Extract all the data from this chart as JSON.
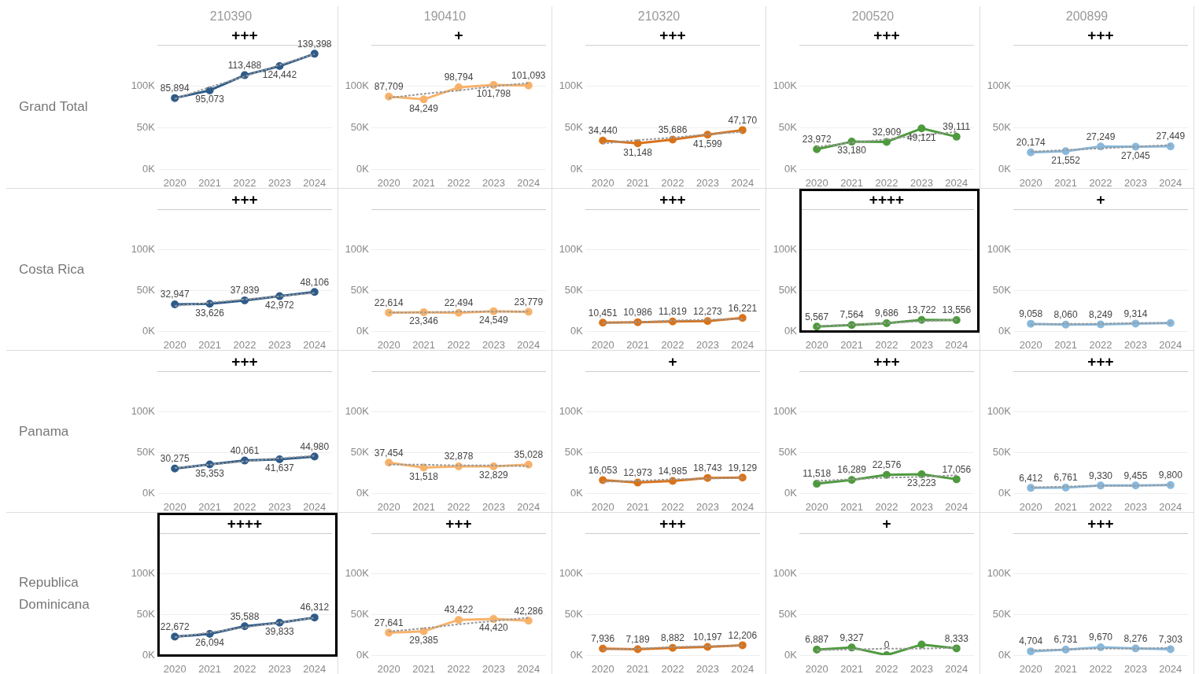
{
  "chart_data": [
    {
      "type": "line",
      "title": "210390",
      "ylabel": "Grand Total",
      "categories": [
        "2020",
        "2021",
        "2022",
        "2023",
        "2024"
      ],
      "series": [
        {
          "color": "#2e5b8a",
          "marker": "circle",
          "values": [
            85894,
            95073,
            113488,
            124442,
            139398
          ],
          "value_labels": [
            "85,894",
            "95,073",
            "113,488",
            "124,442",
            "139,398"
          ]
        },
        {
          "type": "line",
          "color": "#999999",
          "line_style": "dashed",
          "marker": "none",
          "values": [
            85000,
            99000,
            112000,
            126000,
            139000
          ]
        }
      ],
      "ylim": [
        0,
        150000
      ],
      "yticks": [
        {
          "value": 0,
          "label": "0K"
        },
        {
          "value": 50000,
          "label": "50K"
        },
        {
          "value": 100000,
          "label": "100K"
        }
      ],
      "grid": "y",
      "annotations": [
        "+++"
      ]
    },
    {
      "type": "line",
      "title": "190410",
      "categories": [
        "2020",
        "2021",
        "2022",
        "2023",
        "2024"
      ],
      "series": [
        {
          "color": "#f7b26a",
          "marker": "circle",
          "values": [
            87709,
            84249,
            98794,
            101798,
            101093
          ],
          "value_labels": [
            "87,709",
            "84,249",
            "98,794",
            "101,798",
            "101,093"
          ]
        },
        {
          "type": "line",
          "color": "#999999",
          "line_style": "dashed",
          "marker": "none",
          "values": [
            86000,
            91000,
            95000,
            100000,
            104000
          ]
        }
      ],
      "ylim": [
        0,
        150000
      ],
      "yticks": [
        {
          "value": 0,
          "label": "0K"
        },
        {
          "value": 50000,
          "label": "50K"
        },
        {
          "value": 100000,
          "label": "100K"
        }
      ],
      "grid": "y",
      "annotations": [
        "+"
      ]
    },
    {
      "type": "line",
      "title": "210320",
      "categories": [
        "2020",
        "2021",
        "2022",
        "2023",
        "2024"
      ],
      "series": [
        {
          "color": "#d9731a",
          "marker": "circle",
          "values": [
            34440,
            31148,
            35686,
            41599,
            47170
          ],
          "value_labels": [
            "34,440",
            "31,148",
            "35,686",
            "41,599",
            "47,170"
          ]
        },
        {
          "type": "line",
          "color": "#999999",
          "line_style": "dashed",
          "marker": "none",
          "values": [
            31000,
            35000,
            38000,
            42000,
            45000
          ]
        }
      ],
      "ylim": [
        0,
        150000
      ],
      "yticks": [
        {
          "value": 0,
          "label": "0K"
        },
        {
          "value": 50000,
          "label": "50K"
        },
        {
          "value": 100000,
          "label": "100K"
        }
      ],
      "grid": "y",
      "annotations": [
        "+++"
      ]
    },
    {
      "type": "line",
      "title": "200520",
      "categories": [
        "2020",
        "2021",
        "2022",
        "2023",
        "2024"
      ],
      "series": [
        {
          "color": "#4e9a3e",
          "marker": "circle",
          "values": [
            23972,
            33180,
            32909,
            49121,
            39111
          ],
          "value_labels": [
            "23,972",
            "33,180",
            "32,909",
            "49,121",
            "39,111"
          ]
        },
        {
          "type": "line",
          "color": "#999999",
          "line_style": "dashed",
          "marker": "none",
          "values": [
            27000,
            32000,
            36000,
            41000,
            45000
          ]
        }
      ],
      "ylim": [
        0,
        150000
      ],
      "yticks": [
        {
          "value": 0,
          "label": "0K"
        },
        {
          "value": 50000,
          "label": "50K"
        },
        {
          "value": 100000,
          "label": "100K"
        }
      ],
      "grid": "y",
      "annotations": [
        "+++"
      ]
    },
    {
      "type": "line",
      "title": "200899",
      "categories": [
        "2020",
        "2021",
        "2022",
        "2023",
        "2024"
      ],
      "series": [
        {
          "color": "#88b8dc",
          "marker": "circle",
          "values": [
            20174,
            21552,
            27249,
            27045,
            27449
          ],
          "value_labels": [
            "20,174",
            "21,552",
            "27,249",
            "27,045",
            "27,449"
          ]
        },
        {
          "type": "line",
          "color": "#999999",
          "line_style": "dashed",
          "marker": "none",
          "values": [
            21000,
            23000,
            25000,
            27000,
            29000
          ]
        }
      ],
      "ylim": [
        0,
        150000
      ],
      "yticks": [
        {
          "value": 0,
          "label": "0K"
        },
        {
          "value": 50000,
          "label": "50K"
        },
        {
          "value": 100000,
          "label": "100K"
        }
      ],
      "grid": "y",
      "annotations": [
        "+++"
      ]
    },
    {
      "type": "line",
      "ylabel": "Costa Rica",
      "categories": [
        "2020",
        "2021",
        "2022",
        "2023",
        "2024"
      ],
      "series": [
        {
          "color": "#2e5b8a",
          "marker": "circle",
          "values": [
            32947,
            33626,
            37839,
            42972,
            48106
          ],
          "value_labels": [
            "32,947",
            "33,626",
            "37,839",
            "42,972",
            "48,106"
          ]
        },
        {
          "type": "line",
          "color": "#999999",
          "line_style": "dashed",
          "marker": "none",
          "values": [
            31000,
            35000,
            39000,
            43000,
            47000
          ]
        }
      ],
      "ylim": [
        0,
        150000
      ],
      "yticks": [
        {
          "value": 0,
          "label": "0K"
        },
        {
          "value": 50000,
          "label": "50K"
        },
        {
          "value": 100000,
          "label": "100K"
        }
      ],
      "grid": "y",
      "annotations": [
        "+++"
      ]
    },
    {
      "type": "line",
      "categories": [
        "2020",
        "2021",
        "2022",
        "2023",
        "2024"
      ],
      "series": [
        {
          "color": "#f7b26a",
          "marker": "circle",
          "values": [
            22614,
            23346,
            22494,
            24549,
            23779
          ],
          "value_labels": [
            "22,614",
            "23,346",
            "22,494",
            "24,549",
            "23,779"
          ]
        },
        {
          "type": "line",
          "color": "#999999",
          "line_style": "dashed",
          "marker": "none",
          "values": [
            23000,
            23000,
            24000,
            24000,
            24000
          ]
        }
      ],
      "ylim": [
        0,
        150000
      ],
      "yticks": [
        {
          "value": 0,
          "label": "0K"
        },
        {
          "value": 50000,
          "label": "50K"
        },
        {
          "value": 100000,
          "label": "100K"
        }
      ],
      "grid": "y"
    },
    {
      "type": "line",
      "categories": [
        "2020",
        "2021",
        "2022",
        "2023",
        "2024"
      ],
      "series": [
        {
          "color": "#d9731a",
          "marker": "circle",
          "values": [
            10451,
            10986,
            11819,
            12273,
            16221
          ],
          "value_labels": [
            "10,451",
            "10,986",
            "11,819",
            "12,273",
            "16,221"
          ]
        },
        {
          "type": "line",
          "color": "#999999",
          "line_style": "dashed",
          "marker": "none",
          "values": [
            10000,
            11000,
            13000,
            14000,
            15000
          ]
        }
      ],
      "ylim": [
        0,
        150000
      ],
      "yticks": [
        {
          "value": 0,
          "label": "0K"
        },
        {
          "value": 50000,
          "label": "50K"
        },
        {
          "value": 100000,
          "label": "100K"
        }
      ],
      "grid": "y",
      "annotations": [
        "+++"
      ]
    },
    {
      "type": "line",
      "categories": [
        "2020",
        "2021",
        "2022",
        "2023",
        "2024"
      ],
      "series": [
        {
          "color": "#4e9a3e",
          "marker": "circle",
          "values": [
            5567,
            7564,
            9686,
            13722,
            13556
          ],
          "value_labels": [
            "5,567",
            "7,564",
            "9,686",
            "13,722",
            "13,556"
          ]
        },
        {
          "type": "line",
          "color": "#999999",
          "line_style": "dashed",
          "marker": "none",
          "values": [
            6000,
            8000,
            10000,
            12000,
            14000
          ]
        }
      ],
      "ylim": [
        0,
        150000
      ],
      "yticks": [
        {
          "value": 0,
          "label": "0K"
        },
        {
          "value": 50000,
          "label": "50K"
        },
        {
          "value": 100000,
          "label": "100K"
        }
      ],
      "grid": "y",
      "annotations": [
        "++++"
      ]
    },
    {
      "type": "line",
      "categories": [
        "2020",
        "2021",
        "2022",
        "2023",
        "2024"
      ],
      "series": [
        {
          "color": "#88b8dc",
          "marker": "circle",
          "values": [
            9058,
            8060,
            8249,
            9314,
            10000
          ],
          "value_labels": [
            "9,058",
            "8,060",
            "8,249",
            "9,314",
            null
          ]
        },
        {
          "type": "line",
          "color": "#999999",
          "line_style": "dashed",
          "marker": "none",
          "values": [
            8000,
            9000,
            9000,
            10000,
            10000
          ]
        }
      ],
      "ylim": [
        0,
        150000
      ],
      "yticks": [
        {
          "value": 0,
          "label": "0K"
        },
        {
          "value": 50000,
          "label": "50K"
        },
        {
          "value": 100000,
          "label": "100K"
        }
      ],
      "grid": "y",
      "annotations": [
        "+"
      ]
    },
    {
      "type": "line",
      "ylabel": "Panama",
      "categories": [
        "2020",
        "2021",
        "2022",
        "2023",
        "2024"
      ],
      "series": [
        {
          "color": "#2e5b8a",
          "marker": "circle",
          "values": [
            30275,
            35353,
            40061,
            41637,
            44980
          ],
          "value_labels": [
            "30,275",
            "35,353",
            "40,061",
            "41,637",
            "44,980"
          ]
        },
        {
          "type": "line",
          "color": "#999999",
          "line_style": "dashed",
          "marker": "none",
          "values": [
            31000,
            35000,
            39000,
            43000,
            46000
          ]
        }
      ],
      "ylim": [
        0,
        150000
      ],
      "yticks": [
        {
          "value": 0,
          "label": "0K"
        },
        {
          "value": 50000,
          "label": "50K"
        },
        {
          "value": 100000,
          "label": "100K"
        }
      ],
      "grid": "y",
      "annotations": [
        "+++"
      ]
    },
    {
      "type": "line",
      "categories": [
        "2020",
        "2021",
        "2022",
        "2023",
        "2024"
      ],
      "series": [
        {
          "color": "#f7b26a",
          "marker": "circle",
          "values": [
            37454,
            31518,
            32878,
            32829,
            35028
          ],
          "value_labels": [
            "37,454",
            "31,518",
            "32,878",
            "32,829",
            "35,028"
          ]
        },
        {
          "type": "line",
          "color": "#999999",
          "line_style": "dashed",
          "marker": "none",
          "values": [
            35000,
            35000,
            34000,
            34000,
            33000
          ]
        }
      ],
      "ylim": [
        0,
        150000
      ],
      "yticks": [
        {
          "value": 0,
          "label": "0K"
        },
        {
          "value": 50000,
          "label": "50K"
        },
        {
          "value": 100000,
          "label": "100K"
        }
      ],
      "grid": "y"
    },
    {
      "type": "line",
      "categories": [
        "2020",
        "2021",
        "2022",
        "2023",
        "2024"
      ],
      "series": [
        {
          "color": "#d9731a",
          "marker": "circle",
          "values": [
            16053,
            12973,
            14985,
            18743,
            19129
          ],
          "value_labels": [
            "16,053",
            "12,973",
            "14,985",
            "18,743",
            "19,129"
          ]
        },
        {
          "type": "line",
          "color": "#999999",
          "line_style": "dashed",
          "marker": "none",
          "values": [
            14000,
            15000,
            17000,
            18000,
            19000
          ]
        }
      ],
      "ylim": [
        0,
        150000
      ],
      "yticks": [
        {
          "value": 0,
          "label": "0K"
        },
        {
          "value": 50000,
          "label": "50K"
        },
        {
          "value": 100000,
          "label": "100K"
        }
      ],
      "grid": "y",
      "annotations": [
        "+"
      ]
    },
    {
      "type": "line",
      "categories": [
        "2020",
        "2021",
        "2022",
        "2023",
        "2024"
      ],
      "series": [
        {
          "color": "#4e9a3e",
          "marker": "circle",
          "values": [
            11518,
            16289,
            22576,
            23223,
            17056
          ],
          "value_labels": [
            "11,518",
            "16,289",
            "22,576",
            "23,223",
            "17,056"
          ]
        },
        {
          "type": "line",
          "color": "#999999",
          "line_style": "dashed",
          "marker": "none",
          "values": [
            15000,
            17000,
            19000,
            20000,
            22000
          ]
        }
      ],
      "ylim": [
        0,
        150000
      ],
      "yticks": [
        {
          "value": 0,
          "label": "0K"
        },
        {
          "value": 50000,
          "label": "50K"
        },
        {
          "value": 100000,
          "label": "100K"
        }
      ],
      "grid": "y",
      "annotations": [
        "+++"
      ]
    },
    {
      "type": "line",
      "categories": [
        "2020",
        "2021",
        "2022",
        "2023",
        "2024"
      ],
      "series": [
        {
          "color": "#88b8dc",
          "marker": "circle",
          "values": [
            6412,
            6761,
            9330,
            9455,
            9800
          ],
          "value_labels": [
            "6,412",
            "6,761",
            "9,330",
            "9,455",
            "9,800"
          ]
        },
        {
          "type": "line",
          "color": "#999999",
          "line_style": "dashed",
          "marker": "none",
          "values": [
            7000,
            8000,
            9000,
            9000,
            10000
          ]
        }
      ],
      "ylim": [
        0,
        150000
      ],
      "yticks": [
        {
          "value": 0,
          "label": "0K"
        },
        {
          "value": 50000,
          "label": "50K"
        },
        {
          "value": 100000,
          "label": "100K"
        }
      ],
      "grid": "y",
      "annotations": [
        "+++"
      ]
    },
    {
      "type": "line",
      "ylabel": "Republica Dominicana",
      "categories": [
        "2020",
        "2021",
        "2022",
        "2023",
        "2024"
      ],
      "series": [
        {
          "color": "#2e5b8a",
          "marker": "circle",
          "values": [
            22672,
            26094,
            35588,
            39833,
            46312
          ],
          "value_labels": [
            "22,672",
            "26,094",
            "35,588",
            "39,833",
            "46,312"
          ]
        },
        {
          "type": "line",
          "color": "#999999",
          "line_style": "dashed",
          "marker": "none",
          "values": [
            22000,
            28000,
            34000,
            40000,
            46000
          ]
        }
      ],
      "ylim": [
        0,
        150000
      ],
      "yticks": [
        {
          "value": 0,
          "label": "0K"
        },
        {
          "value": 50000,
          "label": "50K"
        },
        {
          "value": 100000,
          "label": "100K"
        }
      ],
      "grid": "y",
      "annotations": [
        "++++"
      ]
    },
    {
      "type": "line",
      "categories": [
        "2020",
        "2021",
        "2022",
        "2023",
        "2024"
      ],
      "series": [
        {
          "color": "#f7b26a",
          "marker": "circle",
          "values": [
            27641,
            29385,
            43422,
            44420,
            42286
          ],
          "value_labels": [
            "27,641",
            "29,385",
            "43,422",
            "44,420",
            "42,286"
          ]
        },
        {
          "type": "line",
          "color": "#999999",
          "line_style": "dashed",
          "marker": "none",
          "values": [
            29000,
            33000,
            38000,
            42000,
            46000
          ]
        }
      ],
      "ylim": [
        0,
        150000
      ],
      "yticks": [
        {
          "value": 0,
          "label": "0K"
        },
        {
          "value": 50000,
          "label": "50K"
        },
        {
          "value": 100000,
          "label": "100K"
        }
      ],
      "grid": "y",
      "annotations": [
        "+++"
      ]
    },
    {
      "type": "line",
      "categories": [
        "2020",
        "2021",
        "2022",
        "2023",
        "2024"
      ],
      "series": [
        {
          "color": "#d9731a",
          "marker": "circle",
          "values": [
            7936,
            7189,
            8882,
            10197,
            12206
          ],
          "value_labels": [
            "7,936",
            "7,189",
            "8,882",
            "10,197",
            "12,206"
          ]
        },
        {
          "type": "line",
          "color": "#999999",
          "line_style": "dashed",
          "marker": "none",
          "values": [
            7000,
            8000,
            10000,
            11000,
            12000
          ]
        }
      ],
      "ylim": [
        0,
        150000
      ],
      "yticks": [
        {
          "value": 0,
          "label": "0K"
        },
        {
          "value": 50000,
          "label": "50K"
        },
        {
          "value": 100000,
          "label": "100K"
        }
      ],
      "grid": "y",
      "annotations": [
        "+++"
      ]
    },
    {
      "type": "line",
      "categories": [
        "2020",
        "2021",
        "2022",
        "2023",
        "2024"
      ],
      "series": [
        {
          "color": "#4e9a3e",
          "marker": "circle",
          "values": [
            6887,
            9327,
            0,
            13000,
            8333
          ],
          "value_labels": [
            "6,887",
            "9,327",
            "0",
            null,
            "8,333"
          ]
        },
        {
          "type": "line",
          "color": "#999999",
          "line_style": "dashed",
          "marker": "none",
          "values": [
            6000,
            7000,
            8000,
            8000,
            9000
          ]
        }
      ],
      "ylim": [
        0,
        150000
      ],
      "yticks": [
        {
          "value": 0,
          "label": "0K"
        },
        {
          "value": 50000,
          "label": "50K"
        },
        {
          "value": 100000,
          "label": "100K"
        }
      ],
      "grid": "y",
      "annotations": [
        "+"
      ]
    },
    {
      "type": "line",
      "categories": [
        "2020",
        "2021",
        "2022",
        "2023",
        "2024"
      ],
      "series": [
        {
          "color": "#88b8dc",
          "marker": "circle",
          "values": [
            4704,
            6731,
            9670,
            8276,
            7303
          ],
          "value_labels": [
            "4,704",
            "6,731",
            "9,670",
            "8,276",
            "7,303"
          ]
        },
        {
          "type": "line",
          "color": "#999999",
          "line_style": "dashed",
          "marker": "none",
          "values": [
            6000,
            7000,
            8000,
            8000,
            9000
          ]
        }
      ],
      "ylim": [
        0,
        150000
      ],
      "yticks": [
        {
          "value": 0,
          "label": "0K"
        },
        {
          "value": 50000,
          "label": "50K"
        },
        {
          "value": 100000,
          "label": "100K"
        }
      ],
      "grid": "y",
      "annotations": [
        "+++"
      ]
    }
  ]
}
